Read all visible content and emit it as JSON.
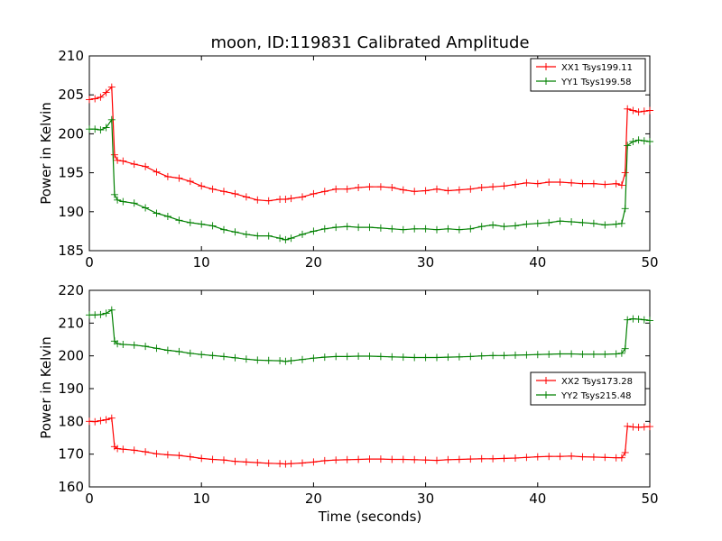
{
  "chart_data": [
    {
      "type": "line",
      "title": "moon, ID:119831 Calibrated Amplitude",
      "xlabel": "",
      "ylabel": "Power in Kelvin",
      "xlim": [
        0,
        50
      ],
      "ylim": [
        185,
        210
      ],
      "xticks": [
        "0",
        "10",
        "20",
        "30",
        "40",
        "50"
      ],
      "yticks": [
        "185",
        "190",
        "195",
        "200",
        "205",
        "210"
      ],
      "grid": false,
      "legend_position": "top-right",
      "x": [
        0,
        0.5,
        1,
        1.5,
        2,
        2.25,
        2.5,
        3,
        4,
        5,
        6,
        7,
        8,
        9,
        10,
        11,
        12,
        13,
        14,
        15,
        16,
        17,
        17.5,
        18,
        19,
        20,
        21,
        22,
        23,
        24,
        25,
        26,
        27,
        28,
        29,
        30,
        31,
        32,
        33,
        34,
        35,
        36,
        37,
        38,
        39,
        40,
        41,
        42,
        43,
        44,
        45,
        46,
        47,
        47.5,
        47.8,
        48,
        48.5,
        49,
        49.5,
        50
      ],
      "series": [
        {
          "name": "XX1 Tsys199.11",
          "color": "#ff0000",
          "values": [
            204.4,
            204.5,
            204.7,
            205.3,
            206.0,
            197.3,
            196.6,
            196.5,
            196.1,
            195.8,
            195.1,
            194.5,
            194.3,
            193.9,
            193.3,
            192.9,
            192.6,
            192.3,
            191.9,
            191.5,
            191.4,
            191.6,
            191.6,
            191.7,
            191.9,
            192.3,
            192.6,
            192.9,
            192.9,
            193.1,
            193.2,
            193.2,
            193.1,
            192.8,
            192.6,
            192.7,
            192.9,
            192.7,
            192.8,
            192.9,
            193.1,
            193.2,
            193.3,
            193.5,
            193.7,
            193.6,
            193.8,
            193.8,
            193.7,
            193.6,
            193.6,
            193.5,
            193.6,
            193.4,
            195.0,
            203.2,
            203.0,
            202.8,
            202.9,
            203.0
          ]
        },
        {
          "name": "YY1 Tsys199.58",
          "color": "#008000",
          "values": [
            200.6,
            200.6,
            200.5,
            200.8,
            201.8,
            192.2,
            191.5,
            191.3,
            191.1,
            190.5,
            189.8,
            189.4,
            188.9,
            188.6,
            188.4,
            188.2,
            187.7,
            187.4,
            187.1,
            186.9,
            186.9,
            186.6,
            186.4,
            186.6,
            187.1,
            187.5,
            187.8,
            188.0,
            188.1,
            188.0,
            188.0,
            187.9,
            187.8,
            187.7,
            187.8,
            187.8,
            187.7,
            187.8,
            187.7,
            187.8,
            188.1,
            188.3,
            188.1,
            188.2,
            188.4,
            188.5,
            188.6,
            188.8,
            188.7,
            188.6,
            188.5,
            188.3,
            188.4,
            188.5,
            190.4,
            198.5,
            199.0,
            199.2,
            199.1,
            199.0
          ]
        }
      ]
    },
    {
      "type": "line",
      "title": "",
      "xlabel": "Time (seconds)",
      "ylabel": "Power in Kelvin",
      "xlim": [
        0,
        50
      ],
      "ylim": [
        160,
        220
      ],
      "xticks": [
        "0",
        "10",
        "20",
        "30",
        "40",
        "50"
      ],
      "yticks": [
        "160",
        "170",
        "180",
        "190",
        "200",
        "210",
        "220"
      ],
      "grid": false,
      "legend_position": "center-right",
      "x": [
        0,
        0.5,
        1,
        1.5,
        2,
        2.25,
        2.5,
        3,
        4,
        5,
        6,
        7,
        8,
        9,
        10,
        11,
        12,
        13,
        14,
        15,
        16,
        17,
        17.5,
        18,
        19,
        20,
        21,
        22,
        23,
        24,
        25,
        26,
        27,
        28,
        29,
        30,
        31,
        32,
        33,
        34,
        35,
        36,
        37,
        38,
        39,
        40,
        41,
        42,
        43,
        44,
        45,
        46,
        47,
        47.5,
        47.8,
        48,
        48.5,
        49,
        49.5,
        50
      ],
      "series": [
        {
          "name": "XX2 Tsys173.28",
          "color": "#ff0000",
          "values": [
            180.0,
            179.9,
            180.2,
            180.5,
            181.0,
            172.3,
            171.7,
            171.5,
            171.2,
            170.7,
            170.1,
            169.8,
            169.6,
            169.2,
            168.7,
            168.4,
            168.2,
            167.8,
            167.6,
            167.4,
            167.2,
            167.1,
            167.0,
            167.1,
            167.3,
            167.6,
            168.0,
            168.2,
            168.3,
            168.4,
            168.5,
            168.5,
            168.4,
            168.4,
            168.3,
            168.2,
            168.1,
            168.3,
            168.4,
            168.5,
            168.6,
            168.6,
            168.7,
            168.8,
            169.0,
            169.2,
            169.3,
            169.3,
            169.4,
            169.2,
            169.1,
            169.0,
            168.9,
            168.9,
            170.5,
            178.5,
            178.3,
            178.2,
            178.3,
            178.4
          ]
        },
        {
          "name": "YY2 Tsys215.48",
          "color": "#008000",
          "values": [
            212.5,
            212.5,
            212.6,
            213.0,
            214.0,
            204.5,
            203.7,
            203.5,
            203.3,
            202.9,
            202.3,
            201.7,
            201.3,
            200.8,
            200.4,
            200.1,
            199.8,
            199.4,
            199.0,
            198.7,
            198.6,
            198.5,
            198.3,
            198.5,
            198.9,
            199.3,
            199.6,
            199.8,
            199.8,
            199.9,
            199.9,
            199.8,
            199.7,
            199.6,
            199.5,
            199.5,
            199.5,
            199.6,
            199.7,
            199.8,
            200.0,
            200.1,
            200.1,
            200.2,
            200.3,
            200.4,
            200.5,
            200.6,
            200.6,
            200.5,
            200.5,
            200.5,
            200.6,
            200.8,
            202.2,
            211.0,
            211.3,
            211.2,
            211.0,
            210.8
          ]
        }
      ]
    }
  ]
}
